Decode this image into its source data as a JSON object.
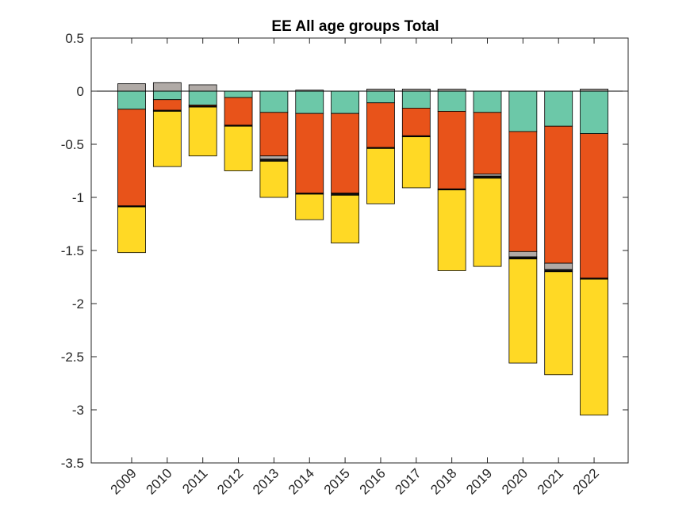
{
  "chart_data": {
    "type": "bar",
    "stacked": true,
    "title": "EE  All age groups  Total",
    "xlabel": "",
    "ylabel": "",
    "ylim": [
      -3.5,
      0.5
    ],
    "yticks": [
      0.5,
      0,
      -0.5,
      -1,
      -1.5,
      -2,
      -2.5,
      -3,
      -3.5
    ],
    "ytick_labels": [
      "0.5",
      "0",
      "-0.5",
      "-1",
      "-1.5",
      "-2",
      "-2.5",
      "-3",
      "-3.5"
    ],
    "categories": [
      "2009",
      "2010",
      "2011",
      "2012",
      "2013",
      "2014",
      "2015",
      "2016",
      "2017",
      "2018",
      "2019",
      "2020",
      "2021",
      "2022"
    ],
    "grid": false,
    "legend": "none",
    "zero_line": true,
    "series": [
      {
        "color": "#6cc8a8",
        "values": [
          -0.17,
          -0.08,
          -0.13,
          -0.06,
          -0.2,
          -0.21,
          -0.21,
          -0.11,
          -0.16,
          -0.19,
          -0.2,
          -0.38,
          -0.33,
          -0.4
        ]
      },
      {
        "color": "#e8531a",
        "values": [
          -0.91,
          -0.1,
          -0.01,
          -0.26,
          -0.41,
          -0.75,
          -0.75,
          -0.42,
          -0.26,
          -0.73,
          -0.58,
          -1.13,
          -1.29,
          -1.36
        ]
      },
      {
        "color": "#b0aaa6",
        "values": [
          0.07,
          0.08,
          0.06,
          0,
          -0.03,
          0.01,
          0,
          0.02,
          0.02,
          0.02,
          -0.02,
          -0.05,
          -0.06,
          0.02
        ]
      },
      {
        "color": "#111111",
        "values": [
          -0.01,
          -0.01,
          -0.01,
          -0.01,
          -0.02,
          -0.01,
          -0.02,
          -0.01,
          -0.01,
          -0.01,
          -0.02,
          -0.02,
          -0.02,
          -0.01
        ]
      },
      {
        "color": "#ffd925",
        "values": [
          -0.43,
          -0.52,
          -0.46,
          -0.42,
          -0.34,
          -0.24,
          -0.45,
          -0.52,
          -0.48,
          -0.76,
          -0.83,
          -0.98,
          -0.97,
          -1.28
        ]
      }
    ]
  }
}
